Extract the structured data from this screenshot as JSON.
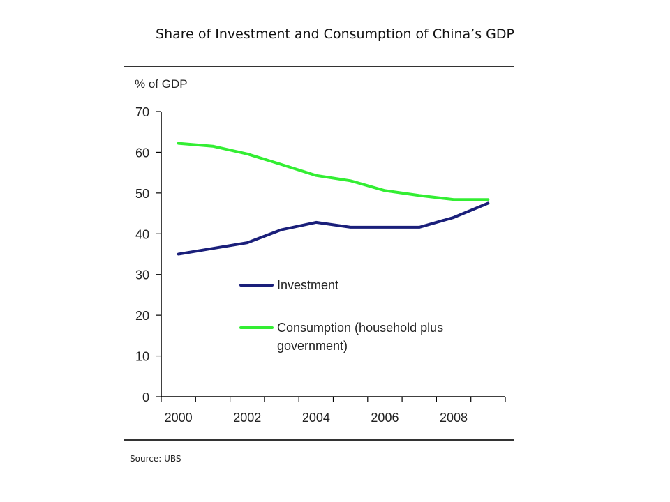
{
  "slide": {
    "title": "Share of Investment and Consumption of China’s GDP",
    "source": "Source: UBS"
  },
  "chart_data": {
    "type": "line",
    "ylabel": "% of GDP",
    "ylim": [
      0,
      70
    ],
    "yticks": [
      0,
      10,
      20,
      30,
      40,
      50,
      60,
      70
    ],
    "xlim": [
      2000,
      2010
    ],
    "xticks": [
      2000,
      2002,
      2004,
      2006,
      2008
    ],
    "grid": false,
    "legend_position": "center",
    "x": [
      2000,
      2001,
      2002,
      2003,
      2004,
      2005,
      2006,
      2007,
      2008,
      2009
    ],
    "series": [
      {
        "name": "Investment",
        "color": "#1a1f7a",
        "values": [
          35,
          36.4,
          37.8,
          41,
          42.8,
          41.6,
          41.6,
          41.6,
          44,
          47.5
        ]
      },
      {
        "name": "Consumption (household plus government)",
        "name_lines": [
          "Consumption (household plus",
          "government)"
        ],
        "color": "#33ee33",
        "values": [
          62.2,
          61.5,
          59.6,
          57,
          54.3,
          53,
          50.6,
          49.4,
          48.4,
          48.4
        ]
      }
    ]
  }
}
